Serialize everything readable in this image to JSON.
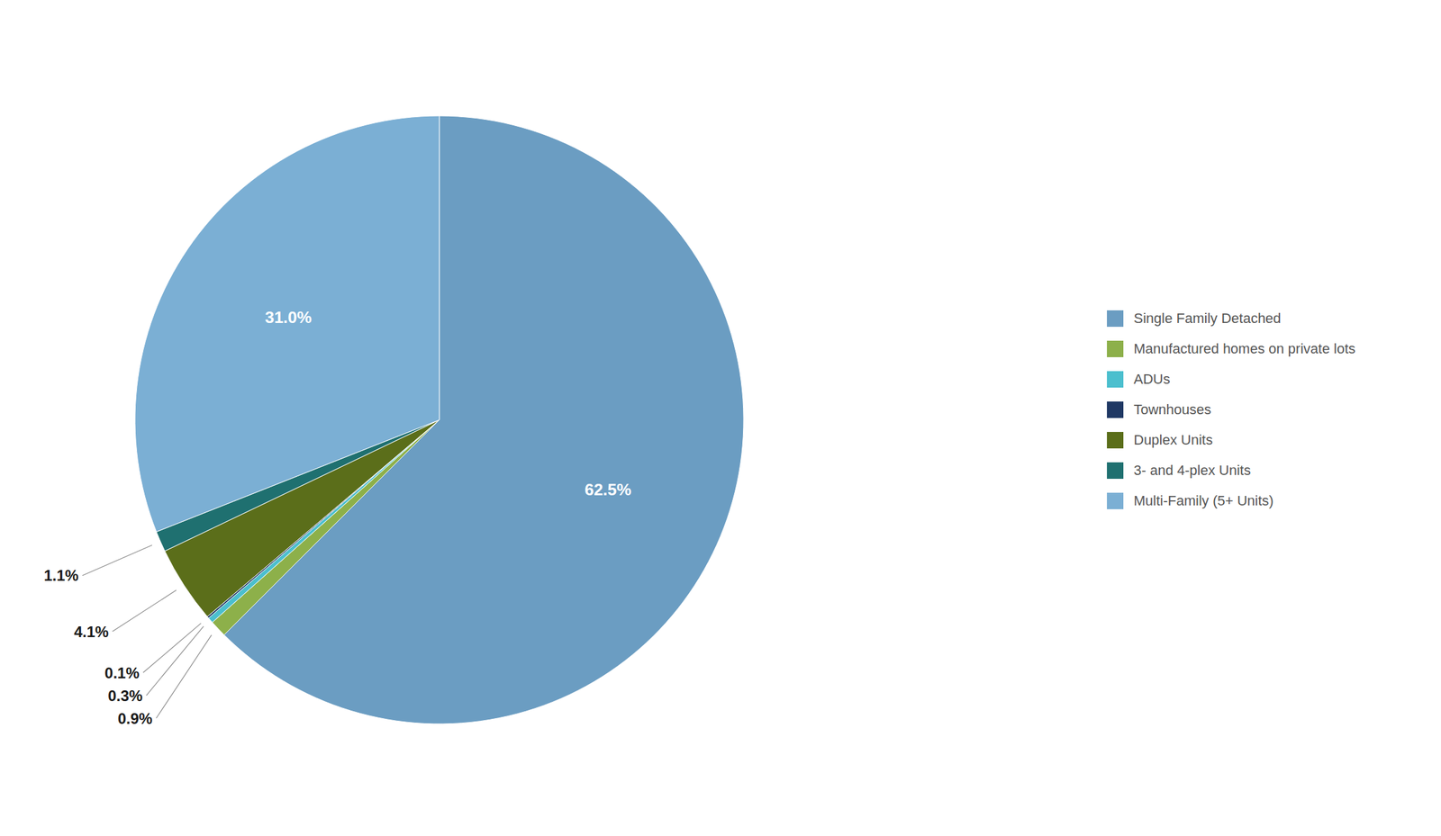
{
  "chart_data": {
    "type": "pie",
    "categories": [
      "Single Family Detached",
      "Manufactured homes on private lots",
      "ADUs",
      "Townhouses",
      "Duplex Units",
      "3- and 4-plex Units",
      "Multi-Family (5+ Units)"
    ],
    "values": [
      62.5,
      0.9,
      0.3,
      0.1,
      4.1,
      1.1,
      31.0
    ],
    "value_labels": [
      "62.5%",
      "0.9%",
      "0.3%",
      "0.1%",
      "4.1%",
      "1.1%",
      "31.0%"
    ],
    "colors": [
      "#6B9DC2",
      "#8DB04A",
      "#4BBFCE",
      "#1F3864",
      "#5B6E1A",
      "#1F7070",
      "#7BAFD4"
    ],
    "data_labels": true,
    "legend": "right"
  }
}
